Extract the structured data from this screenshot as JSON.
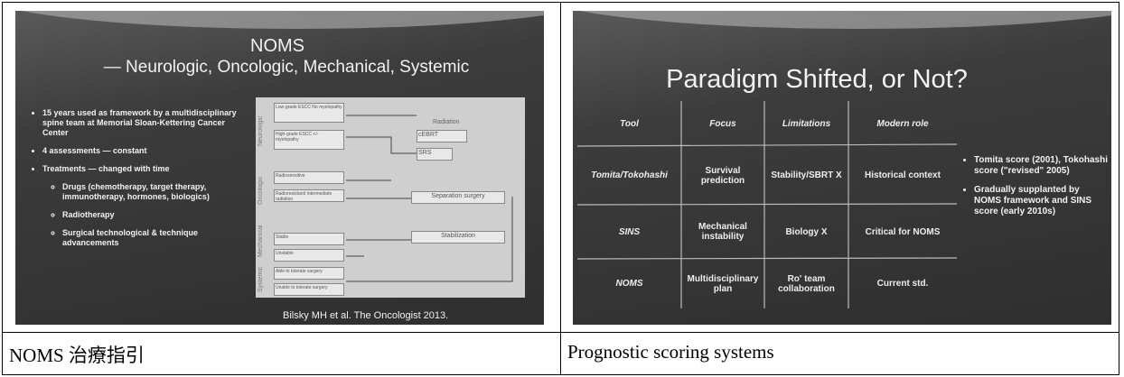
{
  "left_slide": {
    "title": "NOMS",
    "subtitle": "— Neurologic, Oncologic, Mechanical, Systemic",
    "bullets": [
      "15 years used as framework by a multidisciplinary spine team at Memorial Sloan-Kettering Cancer Center",
      "4 assessments — constant",
      "Treatments — changed with time"
    ],
    "sub_bullets": [
      "Drugs (chemotherapy, target therapy, immunotherapy, hormones, biologics)",
      "Radiotherapy",
      "Surgical technological & technique advancements"
    ],
    "diagram": {
      "sections": [
        "Neurologic",
        "Oncologic",
        "Mechanical",
        "Systemic"
      ],
      "boxes": [
        "Low-grade ESCC No myelopathy",
        "High-grade ESCC +/- myelopathy",
        "Radiosensitive",
        "Radioresistant/ intermediate radiation",
        "Stable",
        "Unstable",
        "Able to tolerate surgery",
        "Unable to tolerate surgery"
      ],
      "radiation": "Radiation",
      "outcomes": [
        "cEBRT",
        "SRS",
        "Separation surgery",
        "Stabilization"
      ]
    },
    "citation": "Bilsky MH et al. The Oncologist 2013."
  },
  "right_slide": {
    "title": "Paradigm Shifted, or Not?",
    "table": {
      "header": [
        "Tool",
        "Focus",
        "Limitations",
        "Modern role"
      ],
      "rows": [
        [
          "Tomita/Tokohashi",
          "Survival prediction",
          "Stability/SBRT X",
          "Historical context"
        ],
        [
          "SINS",
          "Mechanical instability",
          "Biology X",
          "Critical for NOMS"
        ],
        [
          "NOMS",
          "Multidisciplinary plan",
          "Ro' team collaboration",
          "Current std."
        ]
      ]
    },
    "bullets": [
      "Tomita score (2001), Tokohashi score (\"revised\" 2005)",
      "Gradually supplanted by NOMS framework and SINS score (early 2010s)"
    ]
  },
  "captions": [
    "NOMS 治療指引",
    "Prognostic scoring systems"
  ]
}
